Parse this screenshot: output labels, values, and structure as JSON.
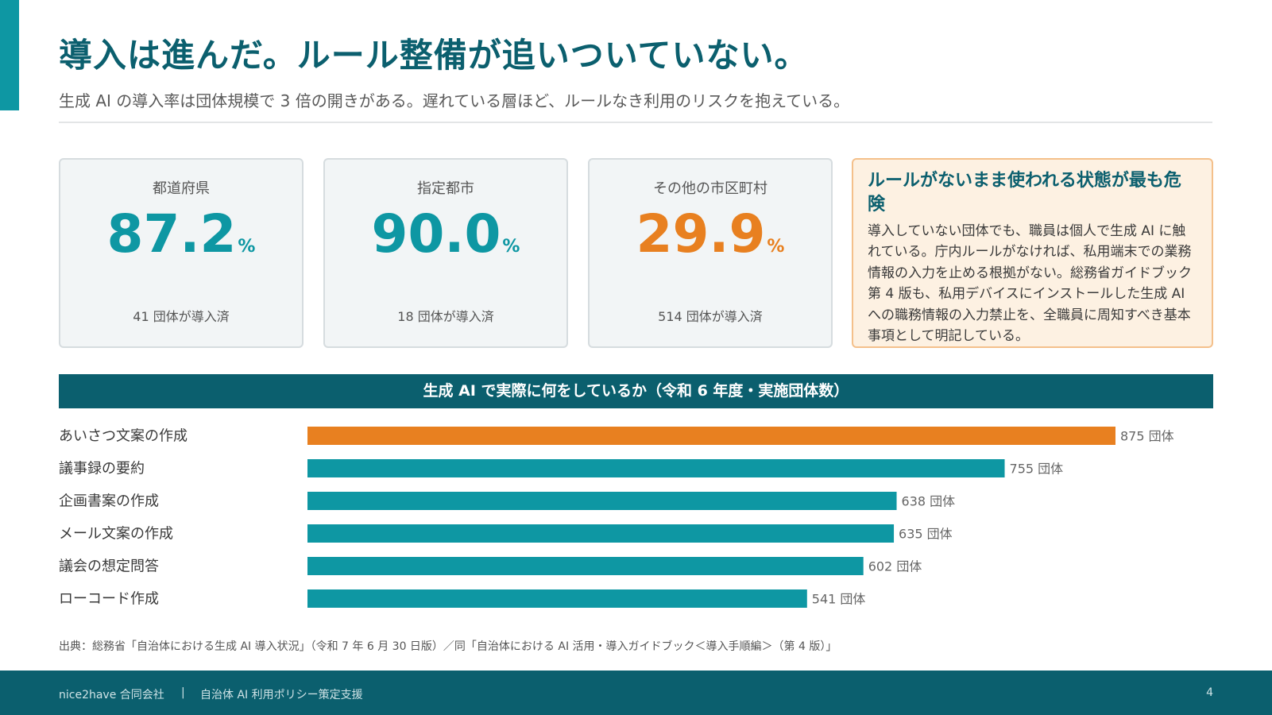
{
  "header": {
    "title": "導入は進んだ。ルール整備が追いついていない。",
    "subtitle": "生成 AI の導入率は団体規模で 3 倍の開きがある。遅れている層ほど、ルールなき利用のリスクを抱えている。"
  },
  "stats": [
    {
      "label": "都道府県",
      "value": "87.2",
      "unit": "%",
      "note": "41 団体が導入済",
      "color": "#0e97a3"
    },
    {
      "label": "指定都市",
      "value": "90.0",
      "unit": "%",
      "note": "18 団体が導入済",
      "color": "#0e97a3"
    },
    {
      "label": "その他の市区町村",
      "value": "29.9",
      "unit": "%",
      "note": "514 団体が導入済",
      "color": "#e88020"
    }
  ],
  "warning": {
    "title": "ルールがないまま使われる状態が最も危険",
    "body": "導入していない団体でも、職員は個人で生成 AI に触れている。庁内ルールがなければ、私用端末での業務情報の入力を止める根拠がない。総務省ガイドブック第 4 版も、私用デバイスにインストールした生成 AI への職務情報の入力禁止を、全職員に周知すべき基本事項として明記している。"
  },
  "chart_data": {
    "type": "bar",
    "orientation": "horizontal",
    "title": "生成 AI で実際に何をしているか（令和 6 年度・実施団体数）",
    "categories": [
      "あいさつ文案の作成",
      "議事録の要約",
      "企画書案の作成",
      "メール文案の作成",
      "議会の想定問答",
      "ローコード作成"
    ],
    "values": [
      875,
      755,
      638,
      635,
      602,
      541
    ],
    "value_labels": [
      "875 団体",
      "755 団体",
      "638 団体",
      "635 団体",
      "602 団体",
      "541 団体"
    ],
    "unit": "団体",
    "highlight_color": "#e88020",
    "bar_color": "#0e97a3",
    "xlim": [
      0,
      875
    ]
  },
  "source": "出典：総務省「自治体における生成 AI 導入状況」（令和 7 年 6 月 30 日版）／同「自治体における AI 活用・導入ガイドブック＜導入手順編＞（第 4 版）」",
  "footer": {
    "company": "nice2have 合同会社",
    "separator": "|",
    "project": "自治体 AI 利用ポリシー策定支援",
    "page": "4"
  }
}
